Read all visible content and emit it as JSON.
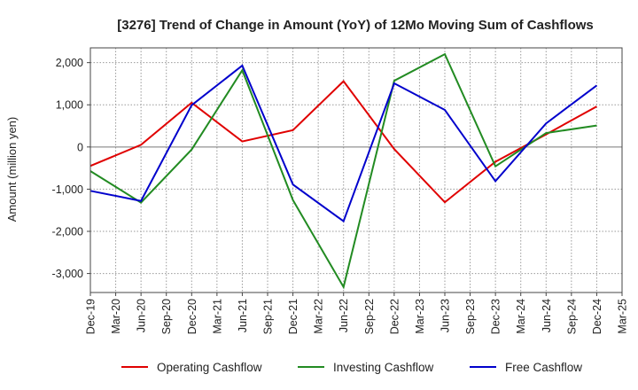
{
  "chart_data": {
    "type": "line",
    "title": "[3276]  Trend of Change in Amount (YoY) of 12Mo Moving Sum of Cashflows",
    "xlabel": "",
    "ylabel": "Amount (million yen)",
    "ylim": [
      -3450,
      2350
    ],
    "yticks": [
      2000,
      1000,
      0,
      -1000,
      -2000,
      -3000
    ],
    "ytick_labels": [
      "2,000",
      "1,000",
      "0",
      "-1,000",
      "-2,000",
      "-3,000"
    ],
    "categories": [
      "Dec-19",
      "Mar-20",
      "Jun-20",
      "Sep-20",
      "Dec-20",
      "Mar-21",
      "Jun-21",
      "Sep-21",
      "Dec-21",
      "Mar-22",
      "Jun-22",
      "Sep-22",
      "Dec-22",
      "Mar-23",
      "Jun-23",
      "Sep-23",
      "Dec-23",
      "Mar-24",
      "Jun-24",
      "Sep-24",
      "Dec-24",
      "Mar-25"
    ],
    "grid": true,
    "legend_position": "bottom",
    "series": [
      {
        "name": "Operating Cashflow",
        "color": "#e00000",
        "points": [
          [
            0,
            -450
          ],
          [
            2,
            50
          ],
          [
            4,
            1050
          ],
          [
            6,
            130
          ],
          [
            8,
            400
          ],
          [
            10,
            1560
          ],
          [
            12,
            -50
          ],
          [
            14,
            -1310
          ],
          [
            16,
            -350
          ],
          [
            18,
            300
          ],
          [
            20,
            960
          ]
        ]
      },
      {
        "name": "Investing Cashflow",
        "color": "#228b22",
        "points": [
          [
            0,
            -570
          ],
          [
            2,
            -1320
          ],
          [
            4,
            -60
          ],
          [
            6,
            1820
          ],
          [
            8,
            -1260
          ],
          [
            10,
            -3320
          ],
          [
            12,
            1570
          ],
          [
            14,
            2200
          ],
          [
            16,
            -460
          ],
          [
            18,
            330
          ],
          [
            20,
            510
          ]
        ]
      },
      {
        "name": "Free Cashflow",
        "color": "#0000cc",
        "points": [
          [
            0,
            -1040
          ],
          [
            2,
            -1280
          ],
          [
            4,
            990
          ],
          [
            6,
            1930
          ],
          [
            8,
            -890
          ],
          [
            10,
            -1760
          ],
          [
            12,
            1510
          ],
          [
            14,
            880
          ],
          [
            16,
            -810
          ],
          [
            18,
            560
          ],
          [
            20,
            1460
          ]
        ]
      }
    ]
  }
}
